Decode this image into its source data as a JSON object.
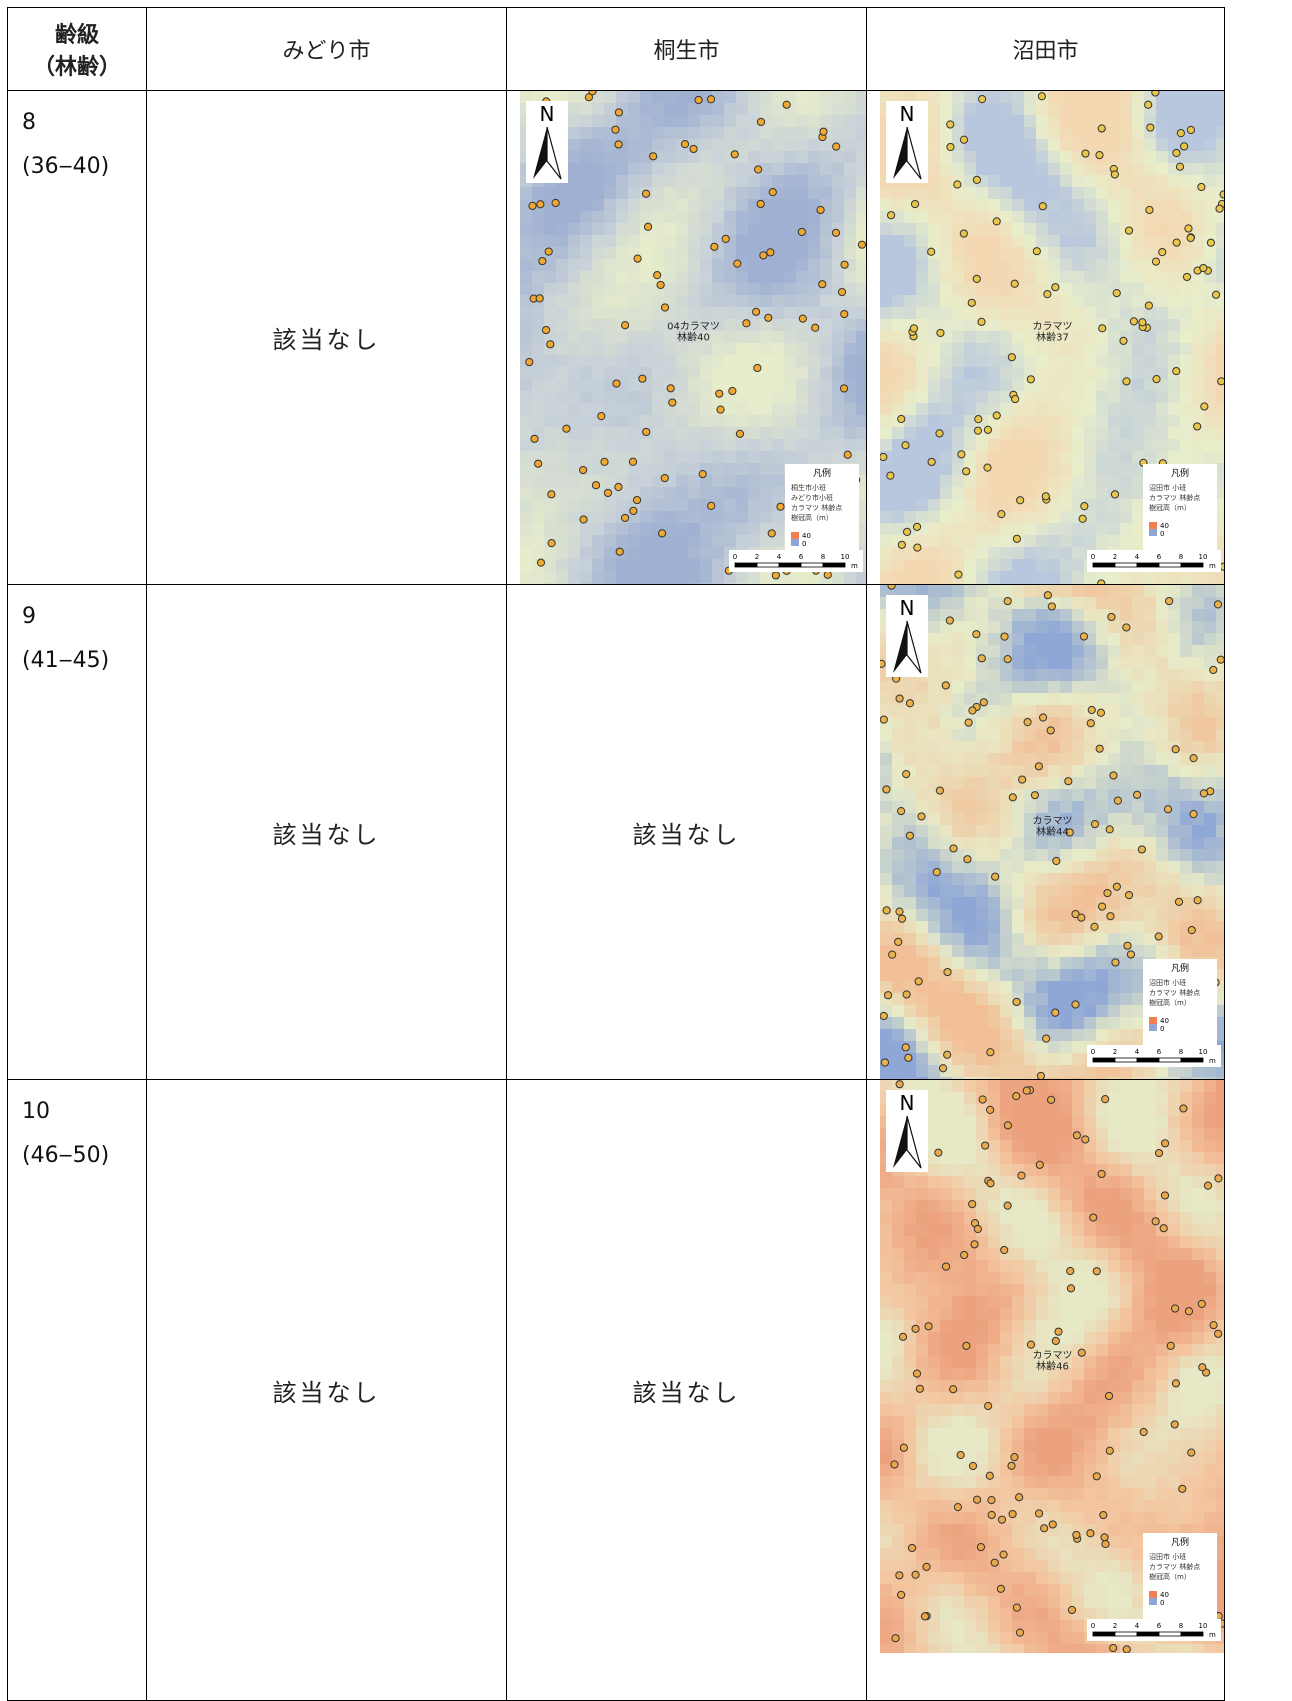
{
  "table": {
    "header": {
      "age_class": "齢級",
      "age_range": "（林齢）",
      "cols": [
        "みどり市",
        "桐生市",
        "沼田市"
      ]
    },
    "rows": [
      {
        "age_class": "8",
        "age_range": "(36‒40)",
        "cells": [
          {
            "text": "該当なし"
          },
          {
            "map": {
              "north": "N",
              "label": [
                "04カラマツ",
                "林齢40"
              ],
              "legend": {
                "title": "凡例",
                "items": [
                  "桐生市小班",
                  "みどり市小班",
                  "カラマツ 林齢点",
                  "樹冠高（m）"
                ],
                "high": "40",
                "low": "0"
              },
              "scale": [
                "0",
                "2",
                "4",
                "6",
                "8",
                "10"
              ],
              "unit": "m",
              "raster_colors": [
                "#9fb0d2",
                "#c9d2d8",
                "#e7edca"
              ],
              "dot_color": "#f0a830"
            }
          },
          {
            "map": {
              "north": "N",
              "label": [
                "カラマツ",
                "林齢37"
              ],
              "legend": {
                "title": "凡例",
                "items": [
                  "沼田市 小班",
                  "カラマツ 林齢点",
                  "樹冠高（m）"
                ],
                "high": "40",
                "low": "0"
              },
              "scale": [
                "0",
                "2",
                "4",
                "6",
                "8",
                "10"
              ],
              "unit": "m",
              "raster_colors": [
                "#b8c6de",
                "#e8eecb",
                "#f3d8b2"
              ],
              "dot_color": "#e9c54a"
            }
          }
        ]
      },
      {
        "age_class": "9",
        "age_range": "(41‒45)",
        "cells": [
          {
            "text": "該当なし"
          },
          {
            "text": "該当なし"
          },
          {
            "map": {
              "north": "N",
              "label": [
                "カラマツ",
                "林齢44"
              ],
              "legend": {
                "title": "凡例",
                "items": [
                  "沼田市 小班",
                  "カラマツ 林齢点",
                  "樹冠高（m）"
                ],
                "high": "40",
                "low": "0"
              },
              "scale": [
                "0",
                "2",
                "4",
                "6",
                "8",
                "10"
              ],
              "unit": "m",
              "raster_colors": [
                "#8ea7d6",
                "#e8ebc8",
                "#f2bf96"
              ],
              "dot_color": "#e9b24a"
            }
          }
        ]
      },
      {
        "age_class": "10",
        "age_range": "(46‒50)",
        "cells": [
          {
            "text": "該当なし"
          },
          {
            "text": "該当なし"
          },
          {
            "map": {
              "north": "N",
              "label": [
                "カラマツ",
                "林齢46"
              ],
              "legend": {
                "title": "凡例",
                "items": [
                  "沼田市 小班",
                  "カラマツ 林齢点",
                  "樹冠高（m）"
                ],
                "high": "40",
                "low": "0"
              },
              "scale": [
                "0",
                "2",
                "4",
                "6",
                "8",
                "10"
              ],
              "unit": "m",
              "raster_colors": [
                "#e6e8c6",
                "#f3c6a0",
                "#eda27e"
              ],
              "dot_color": "#eaa84a"
            }
          }
        ]
      }
    ]
  }
}
